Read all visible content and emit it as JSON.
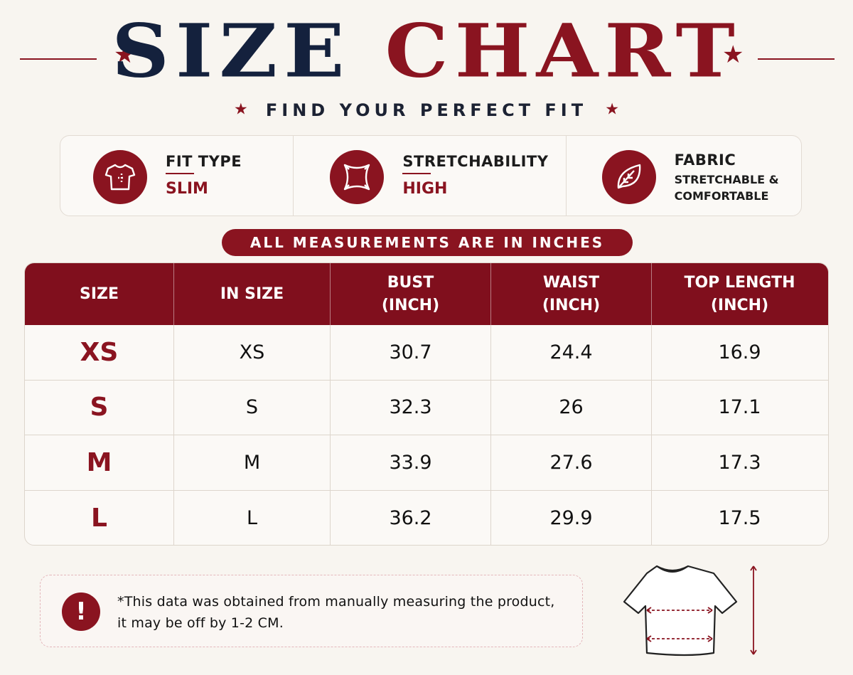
{
  "header": {
    "title_word_1": "SIZE",
    "title_word_2": "CHART",
    "subtitle": "FIND YOUR PERFECT FIT"
  },
  "info": {
    "fit_type": {
      "label": "FIT TYPE",
      "value": "SLIM",
      "icon": "tshirt-icon"
    },
    "stretchability": {
      "label": "STRETCHABILITY",
      "value": "HIGH",
      "icon": "stretch-icon"
    },
    "fabric": {
      "label": "FABRIC",
      "value_line_1": "STRETCHABLE &",
      "value_line_2": "COMFORTABLE",
      "icon": "leaf-icon"
    }
  },
  "measurements_note": "ALL MEASUREMENTS ARE IN INCHES",
  "table": {
    "headers": [
      "SIZE",
      "IN SIZE",
      "BUST\n(INCH)",
      "WAIST\n(INCH)",
      "TOP LENGTH\n(INCH)"
    ],
    "rows": [
      [
        "XS",
        "XS",
        "30.7",
        "24.4",
        "16.9"
      ],
      [
        "S",
        "S",
        "32.3",
        "26",
        "17.1"
      ],
      [
        "M",
        "M",
        "33.9",
        "27.6",
        "17.3"
      ],
      [
        "L",
        "L",
        "36.2",
        "29.9",
        "17.5"
      ]
    ]
  },
  "disclaimer": {
    "icon_text": "!",
    "line_1": "*This data was obtained from manually measuring the product,",
    "line_2": "it may be off by 1-2 CM."
  },
  "colors": {
    "accent": "#8a1420",
    "navy": "#14213d",
    "background": "#f8f5f0"
  }
}
